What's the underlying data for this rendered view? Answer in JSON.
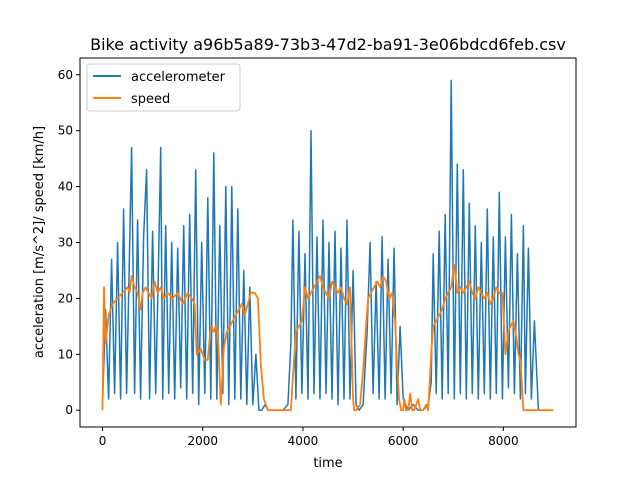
{
  "chart_data": {
    "type": "line",
    "title": "Bike activity a96b5a89-73b3-47d2-ba91-3e06bdcd6feb.csv",
    "xlabel": "time",
    "ylabel": "acceleration [m/s^2]/ speed [km/h]",
    "xlim": [
      -450,
      9450
    ],
    "ylim": [
      -3,
      63
    ],
    "xticks": [
      0,
      2000,
      4000,
      6000,
      8000
    ],
    "yticks": [
      0,
      10,
      20,
      30,
      40,
      50,
      60
    ],
    "xtick_labels": [
      "0",
      "2000",
      "4000",
      "6000",
      "8000"
    ],
    "ytick_labels": [
      "0",
      "10",
      "20",
      "30",
      "40",
      "50",
      "60"
    ],
    "grid": false,
    "legend_position": "top-left",
    "series": [
      {
        "name": "accelerometer",
        "color": "#1f77b4",
        "x": [
          0,
          60,
          120,
          180,
          240,
          300,
          360,
          420,
          480,
          540,
          580,
          640,
          700,
          760,
          820,
          880,
          940,
          1000,
          1060,
          1120,
          1160,
          1200,
          1260,
          1320,
          1380,
          1440,
          1500,
          1560,
          1620,
          1680,
          1740,
          1800,
          1860,
          1920,
          1980,
          2040,
          2100,
          2160,
          2220,
          2280,
          2340,
          2400,
          2460,
          2520,
          2580,
          2640,
          2700,
          2760,
          2820,
          2880,
          2940,
          3000,
          3060,
          3120,
          3180,
          3240,
          3300,
          3400,
          3500,
          3600,
          3700,
          3760,
          3800,
          3860,
          3920,
          3980,
          4040,
          4100,
          4160,
          4220,
          4280,
          4340,
          4400,
          4460,
          4520,
          4580,
          4640,
          4700,
          4760,
          4820,
          4880,
          4940,
          5000,
          5060,
          5120,
          5200,
          5280,
          5340,
          5400,
          5460,
          5520,
          5580,
          5640,
          5700,
          5760,
          5820,
          5880,
          5940,
          6000,
          6100,
          6200,
          6300,
          6400,
          6500,
          6560,
          6600,
          6660,
          6720,
          6780,
          6840,
          6900,
          6960,
          7020,
          7080,
          7140,
          7200,
          7260,
          7320,
          7380,
          7440,
          7500,
          7560,
          7620,
          7680,
          7740,
          7800,
          7860,
          7920,
          7980,
          8040,
          8100,
          8160,
          8220,
          8280,
          8340,
          8400,
          8440,
          8500,
          8560,
          8620,
          8700,
          8800,
          8900,
          9000
        ],
        "values": [
          1,
          18,
          2,
          27,
          3,
          30,
          2,
          36,
          3,
          29,
          47,
          3,
          34,
          2,
          31,
          43,
          2,
          32,
          3,
          28,
          47,
          2,
          33,
          3,
          30,
          2,
          29,
          4,
          33,
          2,
          35,
          3,
          43,
          1,
          30,
          3,
          38,
          2,
          46,
          2,
          33,
          3,
          40,
          1,
          40,
          2,
          36,
          2,
          25,
          1,
          22,
          1,
          10,
          0,
          0,
          1,
          0,
          0,
          0,
          0,
          1,
          12,
          34,
          2,
          32,
          3,
          28,
          2,
          50,
          3,
          31,
          2,
          34,
          3,
          30,
          2,
          32,
          1,
          29,
          2,
          34,
          2,
          25,
          1,
          0,
          1,
          14,
          30,
          3,
          23,
          2,
          31,
          2,
          27,
          3,
          29,
          1,
          15,
          2,
          0,
          1,
          0,
          0,
          1,
          5,
          28,
          3,
          32,
          2,
          35,
          3,
          59,
          2,
          44,
          3,
          43,
          2,
          37,
          3,
          33,
          2,
          30,
          3,
          36,
          2,
          31,
          3,
          39,
          2,
          31,
          4,
          35,
          3,
          28,
          2,
          33,
          3,
          29,
          2,
          16,
          0,
          0,
          0,
          0
        ]
      },
      {
        "name": "speed",
        "color": "#ff7f0e",
        "x": [
          0,
          30,
          60,
          120,
          200,
          300,
          400,
          500,
          540,
          580,
          640,
          700,
          760,
          800,
          860,
          920,
          980,
          1040,
          1100,
          1160,
          1220,
          1300,
          1400,
          1500,
          1600,
          1700,
          1780,
          1840,
          1880,
          1960,
          2040,
          2100,
          2150,
          2180,
          2220,
          2260,
          2300,
          2360,
          2420,
          2480,
          2540,
          2600,
          2660,
          2720,
          2780,
          2840,
          2900,
          2960,
          3040,
          3100,
          3160,
          3220,
          3300,
          3500,
          3700,
          3760,
          3800,
          3860,
          3920,
          3980,
          4040,
          4100,
          4160,
          4220,
          4280,
          4340,
          4400,
          4460,
          4520,
          4580,
          4640,
          4700,
          4760,
          4820,
          4880,
          4940,
          5000,
          5020,
          5060,
          5140,
          5200,
          5260,
          5300,
          5360,
          5420,
          5480,
          5540,
          5600,
          5660,
          5720,
          5780,
          5840,
          5880,
          5920,
          5960,
          6000,
          6020,
          6060,
          6100,
          6140,
          6180,
          6220,
          6260,
          6300,
          6340,
          6400,
          6460,
          6500,
          6560,
          6600,
          6660,
          6720,
          6780,
          6840,
          6900,
          6960,
          7020,
          7080,
          7140,
          7200,
          7260,
          7320,
          7380,
          7440,
          7500,
          7560,
          7620,
          7680,
          7740,
          7800,
          7860,
          7920,
          7980,
          8040,
          8100,
          8140,
          8200,
          8260,
          8300,
          8340,
          8400,
          8460,
          8500,
          8520,
          8560,
          8600,
          8700,
          8800,
          8900,
          9000
        ],
        "values": [
          0,
          22,
          12,
          17,
          19,
          20,
          21,
          22,
          21,
          24,
          22,
          21,
          18,
          21,
          22,
          21,
          20,
          23,
          21,
          22,
          20,
          21,
          20,
          21,
          19,
          21,
          20,
          19,
          10,
          11,
          9,
          9,
          14,
          15,
          14,
          15,
          14,
          1,
          11,
          14,
          15,
          16,
          17,
          18,
          19,
          17,
          19,
          21,
          21,
          20,
          8,
          2,
          0,
          0,
          0,
          0,
          6,
          14,
          15,
          16,
          22,
          20,
          21,
          22,
          23,
          24,
          22,
          21,
          20,
          23,
          22,
          21,
          22,
          20,
          19,
          22,
          2,
          0,
          0,
          1,
          7,
          15,
          20,
          21,
          22,
          23,
          22,
          24,
          23,
          20,
          21,
          16,
          8,
          2,
          0,
          0,
          2,
          0,
          0,
          3,
          0,
          0,
          1,
          2,
          0,
          0,
          1,
          0,
          10,
          15,
          16,
          17,
          18,
          20,
          21,
          22,
          26,
          21,
          22,
          21,
          22,
          23,
          21,
          20,
          22,
          21,
          20,
          21,
          19,
          20,
          22,
          21,
          21,
          10,
          14,
          15,
          16,
          13,
          10,
          9,
          0,
          0,
          0,
          0,
          0,
          0,
          0,
          0,
          0,
          0
        ]
      }
    ]
  }
}
